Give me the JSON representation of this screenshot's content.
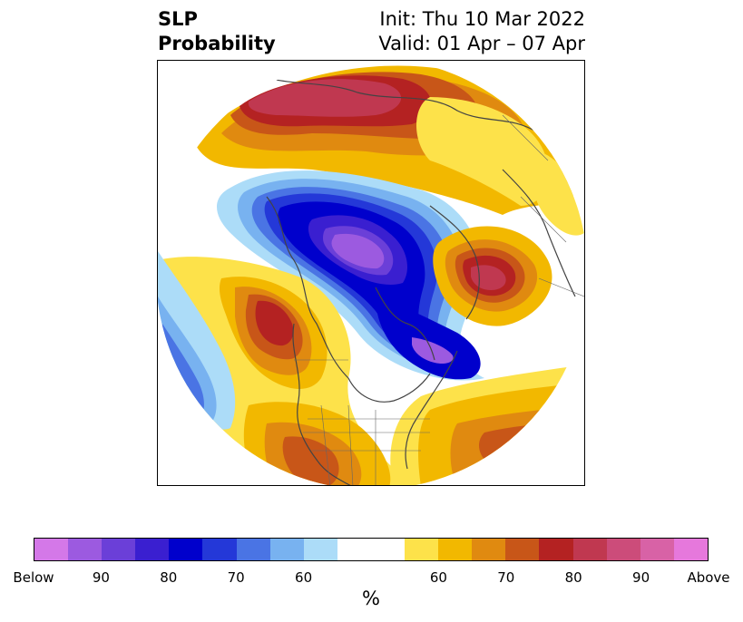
{
  "title": {
    "left_line1": "SLP",
    "left_line2": "Probability",
    "right_line1": "Init: Thu 10 Mar 2022",
    "right_line2": "Valid: 01 Apr – 07 Apr"
  },
  "colorbar": {
    "colors": [
      "#d478e8",
      "#9c5ae0",
      "#6b3fd8",
      "#3a1fd0",
      "#0000cc",
      "#2438d8",
      "#4a74e4",
      "#78b2f0",
      "#acdcf8",
      "#ffffff",
      "#ffffff",
      "#fde24a",
      "#f2b800",
      "#e08a10",
      "#c85618",
      "#b42222",
      "#c03850",
      "#cc4c7a",
      "#d862a6",
      "#e678dc"
    ],
    "tick_labels": [
      "Below",
      "90",
      "80",
      "70",
      "60",
      "",
      "60",
      "70",
      "80",
      "90",
      "Above"
    ],
    "unit": "%"
  },
  "map": {
    "projection": "north-polar-stereographic",
    "field": "sea level pressure tercile probability"
  }
}
